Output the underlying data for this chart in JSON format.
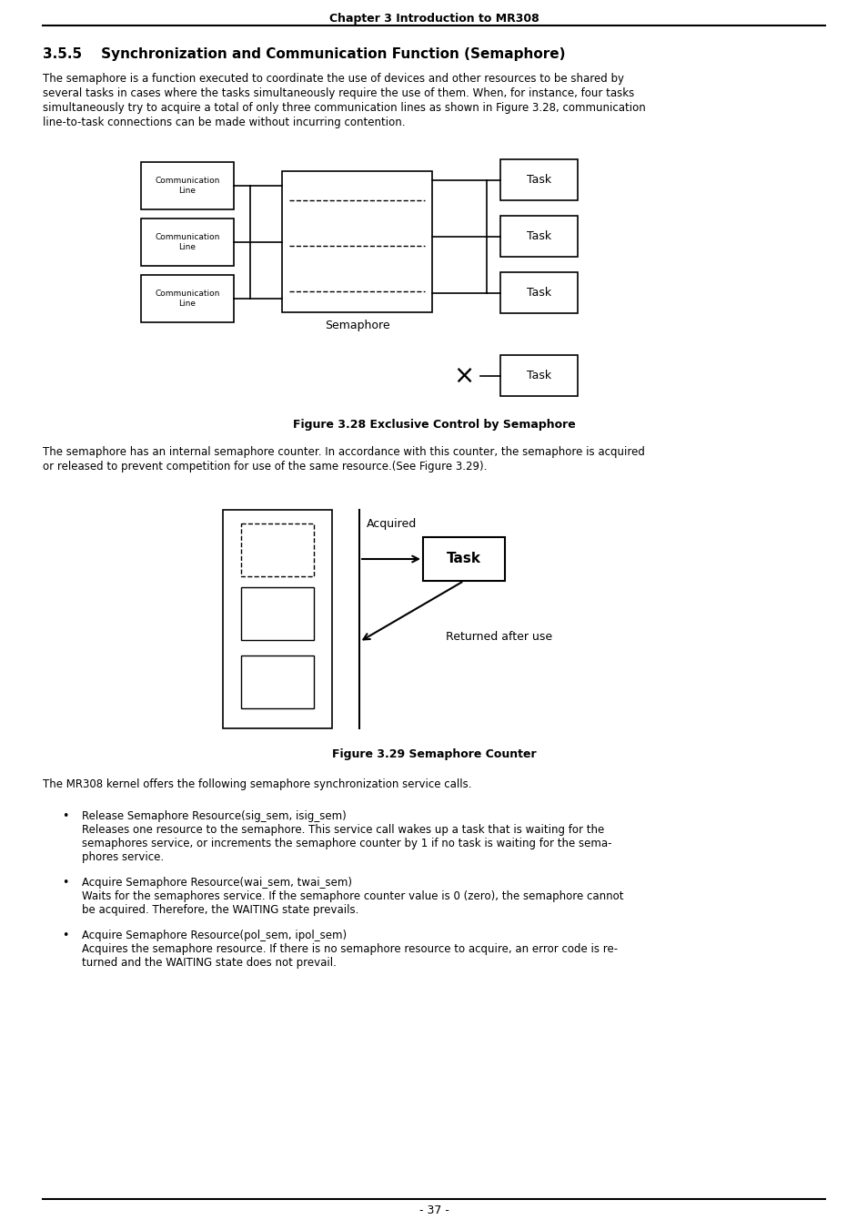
{
  "page_title": "Chapter 3 Introduction to MR308",
  "section_title": "3.5.5    Synchronization and Communication Function (Semaphore)",
  "para1_lines": [
    "The semaphore is a function executed to coordinate the use of devices and other resources to be shared by",
    "several tasks in cases where the tasks simultaneously require the use of them. When, for instance, four tasks",
    "simultaneously try to acquire a total of only three communication lines as shown in Figure 3.28, communication",
    "line-to-task connections can be made without incurring contention."
  ],
  "fig1_caption": "Figure 3.28 Exclusive Control by Semaphore",
  "para2_lines": [
    "The semaphore has an internal semaphore counter. In accordance with this counter, the semaphore is acquired",
    "or released to prevent competition for use of the same resource.(See Figure 3.29)."
  ],
  "fig2_caption": "Figure 3.29 Semaphore Counter",
  "para3": "The MR308 kernel offers the following semaphore synchronization service calls.",
  "bullet1_title": "Release Semaphore Resource(sig_sem, isig_sem)",
  "bullet1_body": [
    "Releases one resource to the semaphore. This service call wakes up a task that is waiting for the",
    "semaphores service, or increments the semaphore counter by 1 if no task is waiting for the sema-",
    "phores service."
  ],
  "bullet2_title": "Acquire Semaphore Resource(wai_sem, twai_sem)",
  "bullet2_body": [
    "Waits for the semaphores service. If the semaphore counter value is 0 (zero), the semaphore cannot",
    "be acquired. Therefore, the WAITING state prevails."
  ],
  "bullet3_title": "Acquire Semaphore Resource(pol_sem, ipol_sem)",
  "bullet3_body": [
    "Acquires the semaphore resource. If there is no semaphore resource to acquire, an error code is re-",
    "turned and the WAITING state does not prevail."
  ],
  "page_number": "- 37 -",
  "bg_color": "#ffffff",
  "lw": 1.2
}
